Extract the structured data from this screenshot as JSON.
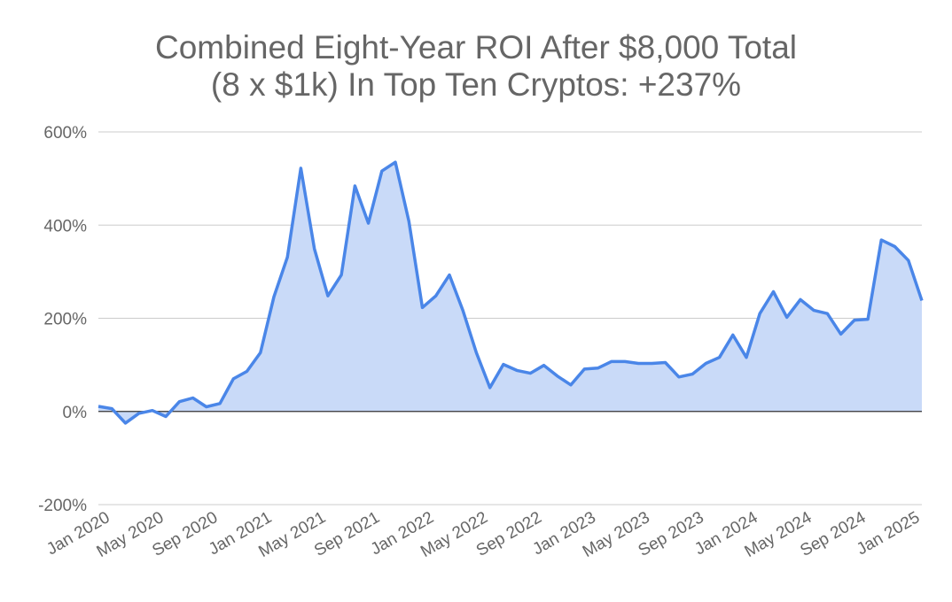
{
  "chart_data": {
    "type": "area",
    "title": [
      "Combined Eight-Year ROI After $8,000 Total",
      "(8 x $1k) In Top Ten Cryptos: +237%"
    ],
    "categories": [
      "Jan 2020",
      null,
      null,
      null,
      "May 2020",
      null,
      null,
      null,
      "Sep 2020",
      null,
      null,
      null,
      "Jan 2021",
      null,
      null,
      null,
      "May 2021",
      null,
      null,
      null,
      "Sep 2021",
      null,
      null,
      null,
      "Jan 2022",
      null,
      null,
      null,
      "May 2022",
      null,
      null,
      null,
      "Sep 2022",
      null,
      null,
      null,
      "Jan 2023",
      null,
      null,
      null,
      "May 2023",
      null,
      null,
      null,
      "Sep 2023",
      null,
      null,
      null,
      "Jan 2024",
      null,
      null,
      null,
      "May 2024",
      null,
      null,
      null,
      "Sep 2024",
      null,
      null,
      null,
      "Jan 2025",
      null
    ],
    "values": [
      11,
      6,
      -25,
      -4,
      2,
      -11,
      21,
      29,
      10,
      17,
      70,
      86,
      126,
      246,
      331,
      522,
      349,
      248,
      293,
      484,
      404,
      516,
      535,
      408,
      223,
      248,
      293,
      217,
      126,
      51,
      101,
      88,
      82,
      99,
      76,
      57,
      91,
      93,
      107,
      107,
      103,
      103,
      105,
      74,
      80,
      103,
      116,
      164,
      116,
      210,
      257,
      202,
      240,
      217,
      210,
      166,
      196,
      198,
      368,
      354,
      324,
      238
    ],
    "color": "#4a86e8",
    "fill": "#c9daf8",
    "ylim": [
      -200,
      600
    ],
    "yticks": [
      {
        "value": -200,
        "label": "-200%"
      },
      {
        "value": 0,
        "label": "0%"
      },
      {
        "value": 200,
        "label": "200%"
      },
      {
        "value": 400,
        "label": "400%"
      },
      {
        "value": 600,
        "label": "600%"
      }
    ],
    "grid": true
  }
}
